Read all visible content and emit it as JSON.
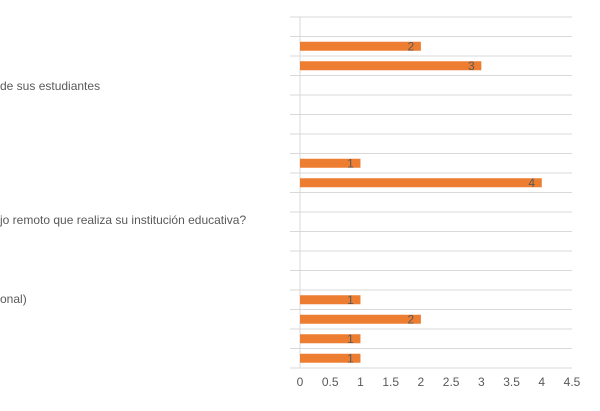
{
  "chart_data": {
    "type": "hbar",
    "annotations": [
      "de sus estudiantes",
      "jo remoto que realiza su institución educativa?",
      "onal)"
    ],
    "categories": [
      null,
      null,
      null,
      null,
      null,
      null,
      null,
      null,
      null,
      null,
      null,
      null,
      null,
      null,
      null,
      null,
      null,
      null
    ],
    "values": [
      null,
      2,
      3,
      null,
      null,
      null,
      null,
      1,
      4,
      null,
      null,
      null,
      null,
      null,
      1,
      2,
      1,
      1
    ],
    "color": "#ed7d31",
    "xlim": [
      0,
      4.5
    ],
    "xticks": [
      0,
      0.5,
      1,
      1.5,
      2,
      2.5,
      3,
      3.5,
      4,
      4.5
    ],
    "grid": true
  }
}
